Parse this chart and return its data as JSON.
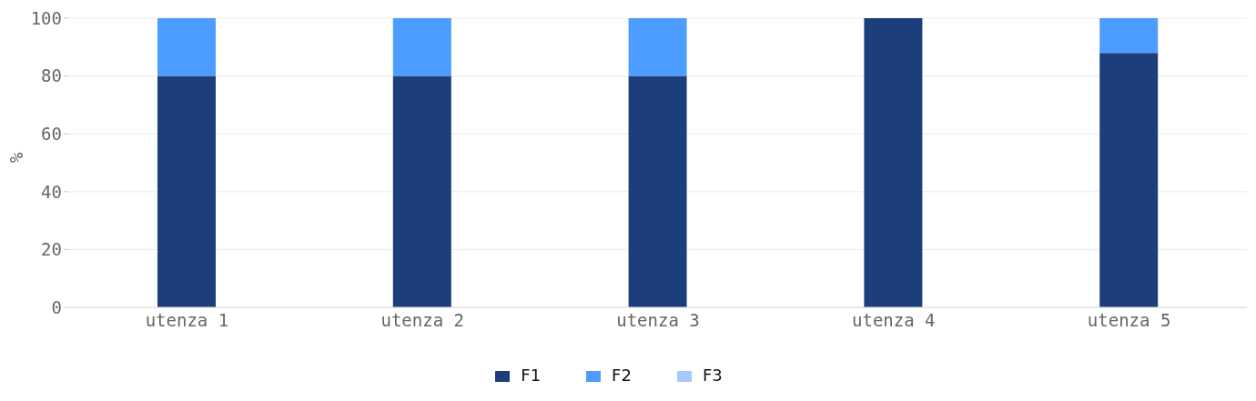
{
  "chart_data": {
    "type": "bar",
    "stacked": true,
    "ylabel": "%",
    "categories": [
      "utenza 1",
      "utenza 2",
      "utenza 3",
      "utenza 4",
      "utenza 5"
    ],
    "series": [
      {
        "name": "F1",
        "color": "#1c3f7c",
        "values": [
          80,
          80,
          80,
          100,
          88
        ]
      },
      {
        "name": "F2",
        "color": "#4d9cff",
        "values": [
          20,
          20,
          20,
          0,
          12
        ]
      },
      {
        "name": "F3",
        "color": "#a6c8ff",
        "values": [
          0,
          0,
          0,
          0,
          0
        ]
      }
    ],
    "ylim": [
      0,
      100
    ],
    "yticks": [
      0,
      20,
      40,
      60,
      80,
      100
    ],
    "grid": "y",
    "legend": "bottom"
  }
}
